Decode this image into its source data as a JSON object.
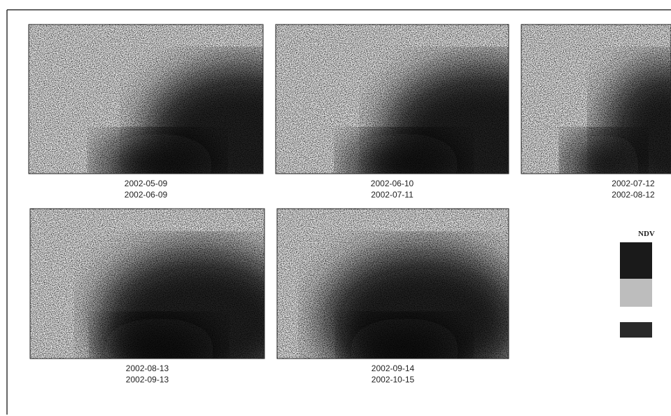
{
  "panels": [
    {
      "date_start": "2002-05-09",
      "date_end": "2002-06-09"
    },
    {
      "date_start": "2002-06-10",
      "date_end": "2002-07-11"
    },
    {
      "date_start": "2002-07-12",
      "date_end": "2002-08-12"
    },
    {
      "date_start": "2002-08-13",
      "date_end": "2002-09-13"
    },
    {
      "date_start": "2002-09-14",
      "date_end": "2002-10-15"
    }
  ],
  "legend": {
    "title": "NDV"
  }
}
